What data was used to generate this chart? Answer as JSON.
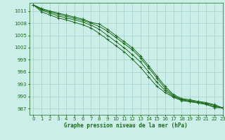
{
  "title": "Graphe pression niveau de la mer (hPa)",
  "background_color": "#cceee8",
  "grid_color": "#aad4ce",
  "line_color": "#1a6b1a",
  "xlim": [
    -0.5,
    23
  ],
  "ylim": [
    985.5,
    1013
  ],
  "yticks": [
    987,
    990,
    993,
    996,
    999,
    1002,
    1005,
    1008,
    1011
  ],
  "xticks": [
    0,
    1,
    2,
    3,
    4,
    5,
    6,
    7,
    8,
    9,
    10,
    11,
    12,
    13,
    14,
    15,
    16,
    17,
    18,
    19,
    20,
    21,
    22,
    23
  ],
  "series": [
    [
      1012.5,
      1011.6,
      1011.0,
      1010.5,
      1010.0,
      1009.5,
      1009.0,
      1008.2,
      1007.8,
      1006.5,
      1005.0,
      1003.5,
      1002.0,
      1000.0,
      997.5,
      995.0,
      992.5,
      990.5,
      989.5,
      989.2,
      988.8,
      988.5,
      988.0,
      987.2
    ],
    [
      1012.5,
      1011.4,
      1010.8,
      1010.2,
      1009.7,
      1009.2,
      1008.7,
      1008.0,
      1007.2,
      1006.0,
      1004.5,
      1003.0,
      1001.5,
      999.5,
      997.0,
      994.5,
      992.0,
      990.2,
      989.3,
      989.0,
      988.7,
      988.3,
      987.8,
      987.2
    ],
    [
      1012.5,
      1011.2,
      1010.5,
      1009.8,
      1009.3,
      1008.8,
      1008.3,
      1007.5,
      1006.5,
      1005.0,
      1003.5,
      1002.0,
      1000.3,
      998.5,
      996.0,
      993.5,
      991.5,
      990.0,
      989.2,
      988.8,
      988.5,
      988.2,
      987.5,
      987.2
    ],
    [
      1012.5,
      1010.8,
      1010.0,
      1009.3,
      1008.8,
      1008.2,
      1007.6,
      1006.8,
      1005.5,
      1004.0,
      1002.5,
      1001.0,
      999.2,
      997.2,
      994.8,
      992.5,
      991.0,
      989.8,
      989.0,
      988.7,
      988.4,
      988.0,
      987.3,
      987.2
    ]
  ]
}
